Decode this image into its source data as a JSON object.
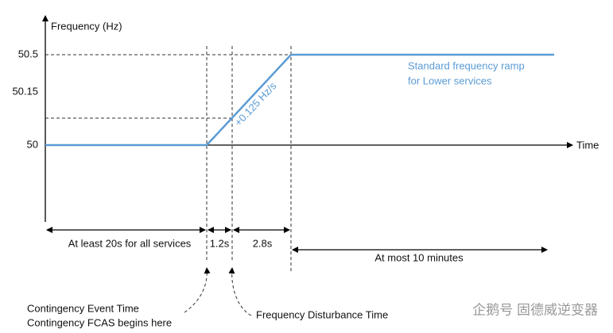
{
  "y_axis": {
    "label": "Frequency (Hz)",
    "ticks": [
      "50.5",
      "50.15",
      "50"
    ]
  },
  "x_axis": {
    "label": "Time"
  },
  "slope_label": "+0.125 Hz/s",
  "ramp_note": [
    "Standard frequency ramp",
    "for Lower services"
  ],
  "intervals": [
    "At least 20s for all services",
    "1.2s",
    "2.8s",
    "At most 10 minutes"
  ],
  "annotations": {
    "event": [
      "Contingency Event Time",
      "Contingency FCAS begins here"
    ],
    "disturbance": "Frequency Disturbance Time"
  },
  "watermark": "企鹅号 固德威逆变器"
}
